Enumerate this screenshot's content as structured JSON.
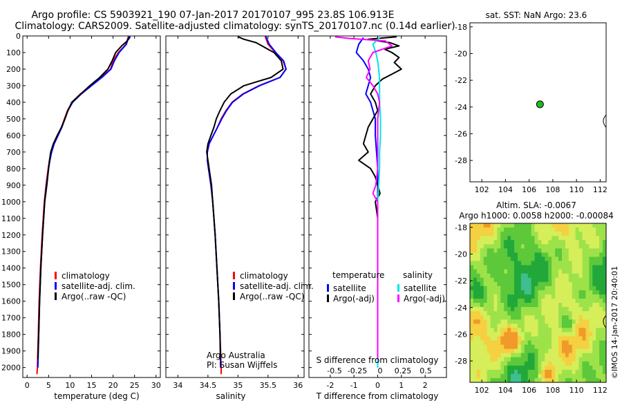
{
  "header": {
    "line1": "Argo profile: CS 5903921_190 07-Jan-2017 20170107_995 23.8S 106.913E",
    "line2": "Climatology: CARS2009. Satellite-adjusted climatology: synTS_20170107.nc (0.14d earlier)"
  },
  "colors": {
    "climatology": "#ff0000",
    "satellite": "#0000ff",
    "argo": "#000000",
    "sal_sat": "#00e5e5",
    "sal_argo": "#ff00ff",
    "marker": "#22bb22"
  },
  "chart_data": [
    {
      "type": "line",
      "id": "temperature",
      "xlabel": "temperature (deg C)",
      "ylim": [
        2060,
        0
      ],
      "xlim": [
        -1,
        31
      ],
      "xticks": [
        0,
        5,
        10,
        15,
        20,
        25,
        30
      ],
      "yticks": [
        0,
        100,
        200,
        300,
        400,
        500,
        600,
        700,
        800,
        900,
        1000,
        1100,
        1200,
        1300,
        1400,
        1500,
        1600,
        1700,
        1800,
        1900,
        2000
      ],
      "legend": [
        "climatology",
        "satellite-adj. clim.",
        "Argo(..raw -QC)"
      ],
      "series": [
        {
          "name": "climatology",
          "color": "#ff0000",
          "depth": [
            0,
            50,
            100,
            150,
            200,
            250,
            300,
            350,
            400,
            450,
            500,
            550,
            600,
            650,
            700,
            750,
            800,
            900,
            1000,
            1200,
            1400,
            1600,
            1800,
            2000,
            2040
          ],
          "values": [
            23.6,
            23.0,
            21.2,
            20.0,
            19.4,
            17.2,
            14.8,
            12.4,
            10.5,
            9.4,
            8.7,
            8.0,
            7.1,
            6.2,
            5.6,
            5.2,
            4.9,
            4.4,
            4.0,
            3.5,
            3.1,
            2.8,
            2.6,
            2.4,
            2.3
          ]
        },
        {
          "name": "satellite-adj. clim.",
          "color": "#0000ff",
          "depth": [
            0,
            50,
            100,
            150,
            200,
            250,
            300,
            350,
            400,
            450,
            500,
            550,
            600,
            650,
            700,
            750,
            800,
            900,
            1000,
            1200,
            1400,
            1600,
            1800,
            2000
          ],
          "values": [
            23.7,
            23.1,
            21.4,
            20.3,
            19.5,
            17.4,
            15.0,
            12.6,
            10.6,
            9.5,
            8.8,
            8.1,
            7.2,
            6.3,
            5.7,
            5.3,
            5.0,
            4.5,
            4.1,
            3.6,
            3.2,
            2.9,
            2.7,
            2.5
          ]
        },
        {
          "name": "Argo(..raw -QC)",
          "color": "#000000",
          "depth": [
            5,
            30,
            60,
            100,
            150,
            200,
            250,
            300,
            350,
            400,
            450,
            500,
            550,
            600,
            650,
            700,
            750,
            800,
            900,
            1000,
            1200,
            1400,
            1600,
            1800,
            1950
          ],
          "values": [
            24.0,
            23.3,
            22.0,
            20.6,
            19.8,
            18.8,
            16.9,
            14.6,
            12.5,
            10.4,
            9.5,
            8.8,
            8.0,
            7.0,
            6.1,
            5.5,
            5.2,
            5.0,
            4.6,
            4.1,
            3.6,
            3.2,
            2.9,
            2.7,
            2.5
          ]
        }
      ]
    },
    {
      "type": "line",
      "id": "salinity",
      "xlabel": "salinity",
      "ylim": [
        2060,
        0
      ],
      "xlim": [
        33.8,
        36.1
      ],
      "xticks": [
        34,
        34.5,
        35,
        35.5,
        36
      ],
      "legend": [
        "climatology",
        "satellite-adj. clim.",
        "Argo(..raw -QC)"
      ],
      "annotation": [
        "Argo Australia",
        "PI: Susan Wijffels"
      ],
      "series": [
        {
          "name": "climatology",
          "color": "#ff0000",
          "depth": [
            0,
            50,
            100,
            150,
            200,
            250,
            300,
            350,
            400,
            450,
            500,
            550,
            600,
            650,
            700,
            750,
            800,
            900,
            1000,
            1200,
            1400,
            1600,
            1800,
            2000,
            2040
          ],
          "values": [
            35.45,
            35.5,
            35.62,
            35.75,
            35.8,
            35.7,
            35.35,
            35.08,
            34.9,
            34.8,
            34.72,
            34.66,
            34.59,
            34.52,
            34.49,
            34.49,
            34.51,
            34.55,
            34.58,
            34.62,
            34.65,
            34.68,
            34.7,
            34.72,
            34.72
          ]
        },
        {
          "name": "satellite-adj. clim.",
          "color": "#0000ff",
          "depth": [
            0,
            50,
            100,
            150,
            200,
            250,
            300,
            350,
            400,
            450,
            500,
            550,
            600,
            650,
            700,
            750,
            800,
            900,
            1000,
            1200,
            1400,
            1600,
            1800,
            2000
          ],
          "values": [
            35.46,
            35.52,
            35.63,
            35.76,
            35.8,
            35.7,
            35.36,
            35.09,
            34.91,
            34.81,
            34.73,
            34.66,
            34.59,
            34.52,
            34.49,
            34.49,
            34.51,
            34.55,
            34.58,
            34.62,
            34.65,
            34.68,
            34.7,
            34.71
          ]
        },
        {
          "name": "Argo(..raw -QC)",
          "color": "#000000",
          "depth": [
            5,
            20,
            40,
            60,
            80,
            100,
            150,
            200,
            250,
            300,
            350,
            400,
            450,
            500,
            550,
            600,
            650,
            700,
            750,
            800,
            900,
            1000,
            1200,
            1400,
            1600,
            1800,
            1950
          ],
          "values": [
            35.0,
            35.1,
            35.3,
            35.4,
            35.5,
            35.6,
            35.72,
            35.75,
            35.55,
            35.1,
            34.88,
            34.77,
            34.7,
            34.64,
            34.6,
            34.55,
            34.5,
            34.48,
            34.5,
            34.52,
            34.56,
            34.58,
            34.62,
            34.65,
            34.68,
            34.7,
            34.71
          ]
        }
      ]
    },
    {
      "type": "line",
      "id": "differences",
      "xlabel": "T difference from climatology",
      "xlabel_top": "S difference from climatology",
      "ylim": [
        2060,
        0
      ],
      "xlim": [
        -2.9,
        2.9
      ],
      "xticks_T": [
        -2,
        -1,
        0,
        1,
        2
      ],
      "xticks_S": [
        "-0.5",
        "-0.25",
        "0",
        "0.25",
        "0.5"
      ],
      "legend_headers": [
        "temperature",
        "salinity"
      ],
      "legend": [
        "satellite",
        "Argo(-adj)",
        "satellite",
        "Argo(-adj)"
      ],
      "series": [
        {
          "name": "satellite",
          "kind": "temperature",
          "color": "#0000ff",
          "depth": [
            10,
            50,
            100,
            150,
            200,
            250,
            300,
            350,
            400,
            450,
            500,
            600,
            700,
            800,
            900,
            1000,
            1200,
            1400,
            1600,
            1800,
            2000
          ],
          "values": [
            -0.6,
            -0.8,
            -0.9,
            -0.6,
            -0.4,
            -0.3,
            -0.4,
            -0.5,
            -0.3,
            -0.2,
            -0.1,
            -0.1,
            -0.05,
            0.0,
            0.0,
            0.0,
            0.0,
            0.0,
            0.0,
            0.0,
            0.0
          ]
        },
        {
          "name": "Argo(-adj)",
          "kind": "temperature",
          "color": "#000000",
          "depth": [
            5,
            20,
            40,
            60,
            80,
            100,
            130,
            160,
            200,
            230,
            260,
            300,
            350,
            400,
            450,
            500,
            550,
            600,
            650,
            700,
            750,
            800,
            850,
            900,
            950,
            1000,
            1100,
            1200,
            1400,
            1600,
            1800,
            1950
          ],
          "values": [
            0.8,
            -0.4,
            0.5,
            0.9,
            0.3,
            0.6,
            0.9,
            0.7,
            1.0,
            0.6,
            0.2,
            -0.1,
            -0.3,
            -0.1,
            0.0,
            -0.2,
            -0.4,
            -0.5,
            -0.6,
            -0.4,
            -0.8,
            -0.3,
            -0.1,
            0.0,
            0.1,
            -0.1,
            0.0,
            0.0,
            0.0,
            0.0,
            0.0,
            0.0
          ]
        },
        {
          "name": "satellite",
          "kind": "salinity",
          "color": "#00e5e5",
          "depth": [
            10,
            50,
            100,
            150,
            200,
            250,
            300,
            400,
            500,
            600,
            700,
            800,
            900,
            1000,
            1200,
            1400,
            1600,
            1800,
            2000
          ],
          "values": [
            0.02,
            -0.05,
            -0.02,
            0.0,
            0.01,
            0.02,
            0.02,
            0.02,
            0.03,
            0.03,
            0.02,
            0.02,
            0.01,
            0.0,
            0.0,
            0.0,
            0.0,
            0.0,
            0.0
          ]
        },
        {
          "name": "Argo(-adj)",
          "kind": "salinity",
          "color": "#ff00ff",
          "depth": [
            5,
            15,
            30,
            60,
            100,
            150,
            200,
            250,
            300,
            350,
            400,
            500,
            600,
            700,
            800,
            900,
            950,
            1000,
            1200,
            1400,
            1600,
            1800,
            1950
          ],
          "values": [
            -0.45,
            -0.3,
            0.08,
            0.15,
            -0.05,
            -0.1,
            -0.08,
            -0.12,
            -0.05,
            0.0,
            0.02,
            0.0,
            0.0,
            0.0,
            0.0,
            -0.02,
            -0.05,
            0.0,
            0.0,
            0.0,
            0.0,
            0.0,
            0.0
          ]
        }
      ]
    },
    {
      "type": "scatter",
      "id": "sst-map",
      "title": "sat. SST: NaN Argo: 23.6",
      "xlim": [
        101,
        112.5
      ],
      "ylim": [
        -29.6,
        -17.7
      ],
      "xticks": [
        102,
        104,
        106,
        108,
        110,
        112
      ],
      "yticks": [
        -18,
        -20,
        -22,
        -24,
        -26,
        -28
      ],
      "points": [
        {
          "x": 106.913,
          "y": -23.8
        }
      ]
    },
    {
      "type": "heatmap",
      "id": "sla-map",
      "title_line1": "Altim. SLA: -0.0067",
      "title_line2": "Argo h1000: 0.0058 h2000: -0.00084",
      "xlim": [
        101,
        112.5
      ],
      "ylim": [
        -29.6,
        -17.7
      ],
      "xticks": [
        102,
        104,
        106,
        108,
        110,
        112
      ],
      "yticks": [
        -18,
        -20,
        -22,
        -24,
        -26,
        -28
      ],
      "palette": [
        "#3fbf8f",
        "#22a83a",
        "#5cc83a",
        "#9ee24a",
        "#d6ee5a",
        "#f5d040",
        "#f09a2a"
      ]
    }
  ],
  "footer": {
    "credit": "©IMOS 14-Jan-2017 20:40:01"
  }
}
